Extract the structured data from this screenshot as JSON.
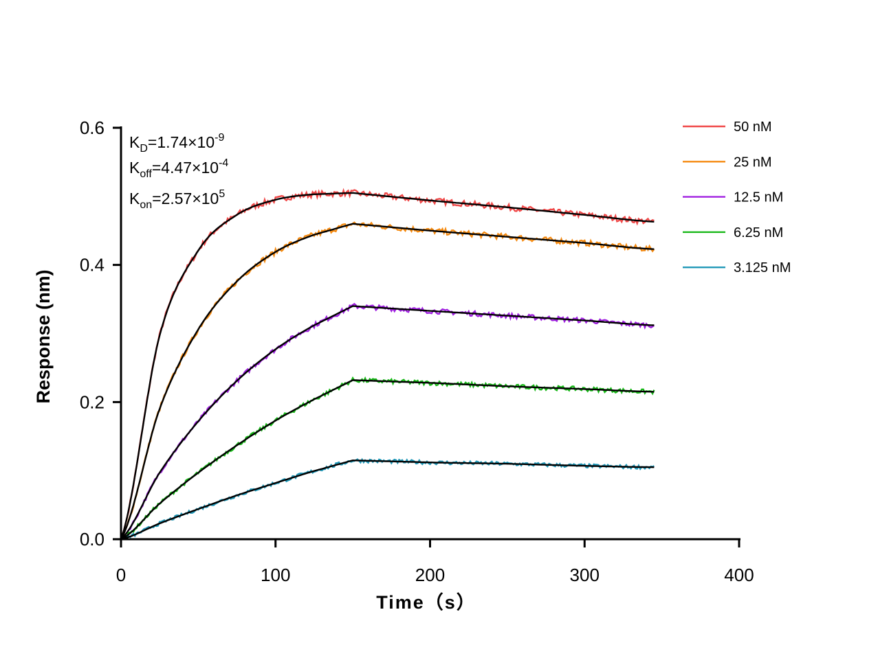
{
  "chart_data": {
    "type": "line",
    "xlabel": "Time（s）",
    "ylabel": "Response (nm)",
    "xlim": [
      0,
      400
    ],
    "ylim": [
      0,
      0.6
    ],
    "xticks": [
      "0",
      "100",
      "200",
      "300",
      "400"
    ],
    "yticks": [
      "0.0",
      "0.2",
      "0.4",
      "0.6"
    ],
    "grid": false,
    "legend_placement": "right",
    "annotations": {
      "kd": {
        "k": "K",
        "sub": "D",
        "val": "=1.74×10",
        "exp": "-9"
      },
      "koff": {
        "k": "K",
        "sub": "off",
        "val": "=4.47×10",
        "exp": "-4"
      },
      "kon": {
        "k": "K",
        "sub": "on",
        "val": "=2.57×10",
        "exp": "5"
      }
    },
    "fit_color": "#000000",
    "x": [
      0,
      25,
      50,
      75,
      100,
      125,
      150,
      200,
      250,
      300,
      345
    ],
    "series": [
      {
        "name": "50 nM",
        "color": "#f04848",
        "fit": [
          0,
          0.297,
          0.421,
          0.473,
          0.495,
          0.503,
          0.505,
          0.494,
          0.484,
          0.473,
          0.463
        ]
      },
      {
        "name": "25 nM",
        "color": "#f58a10",
        "fit": [
          0,
          0.19,
          0.306,
          0.376,
          0.419,
          0.444,
          0.46,
          0.45,
          0.441,
          0.432,
          0.423
        ]
      },
      {
        "name": "12.5 nM",
        "color": "#a020e0",
        "fit": [
          0,
          0.097,
          0.172,
          0.231,
          0.277,
          0.312,
          0.34,
          0.333,
          0.326,
          0.319,
          0.312
        ]
      },
      {
        "name": "6.25 nM",
        "color": "#18b818",
        "fit": [
          0,
          0.052,
          0.097,
          0.137,
          0.173,
          0.204,
          0.232,
          0.228,
          0.223,
          0.219,
          0.215
        ]
      },
      {
        "name": "3.125 nM",
        "color": "#2098b8",
        "fit": [
          0,
          0.023,
          0.044,
          0.064,
          0.082,
          0.0995,
          0.115,
          0.112,
          0.11,
          0.107,
          0.105
        ]
      }
    ]
  }
}
